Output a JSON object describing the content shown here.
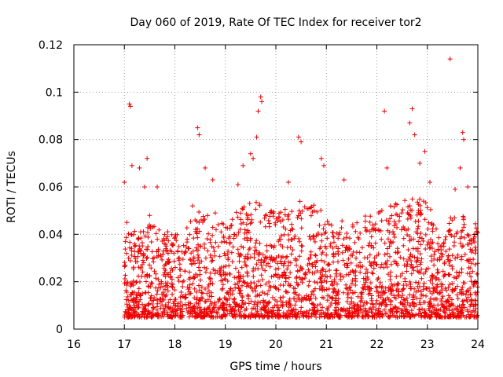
{
  "chart_data": {
    "type": "scatter",
    "title": "Day 060 of 2019, Rate Of TEC Index for receiver tor2",
    "xlabel": "GPS time / hours",
    "ylabel": "ROTI / TECUs",
    "xlim": [
      16,
      24
    ],
    "ylim": [
      0,
      0.12
    ],
    "xticks": [
      "16",
      "17",
      "18",
      "19",
      "20",
      "21",
      "22",
      "23",
      "24"
    ],
    "yticks": [
      "0",
      "0.02",
      "0.04",
      "0.06",
      "0.08",
      "0.1",
      "0.12"
    ],
    "grid": true,
    "marker": "+",
    "colors": {
      "series": "#ee0000",
      "grid": "#a0a0a0",
      "axis": "#000000"
    },
    "series": [
      {
        "name": "ROTI",
        "note": "dense cloud of ~4000 samples between 17:00 and 24:00, mostly 0.005-0.04 TECU/s; notable individual values listed below",
        "x": [
          17.0,
          17.05,
          17.1,
          17.12,
          17.15,
          17.3,
          17.4,
          17.45,
          17.5,
          17.65,
          18.35,
          18.45,
          18.48,
          18.6,
          18.75,
          18.8,
          19.25,
          19.35,
          19.5,
          19.55,
          19.62,
          19.65,
          19.7,
          19.72,
          20.25,
          20.45,
          20.5,
          20.9,
          20.95,
          21.35,
          22.15,
          22.2,
          22.65,
          22.7,
          22.75,
          22.85,
          22.95,
          23.05,
          23.45,
          23.55,
          23.65,
          23.7,
          23.72,
          23.8
        ],
        "y": [
          0.062,
          0.045,
          0.095,
          0.094,
          0.069,
          0.068,
          0.06,
          0.072,
          0.048,
          0.06,
          0.052,
          0.085,
          0.082,
          0.068,
          0.063,
          0.049,
          0.061,
          0.069,
          0.074,
          0.072,
          0.081,
          0.092,
          0.098,
          0.096,
          0.062,
          0.081,
          0.079,
          0.072,
          0.069,
          0.063,
          0.092,
          0.068,
          0.087,
          0.093,
          0.082,
          0.07,
          0.075,
          0.062,
          0.114,
          0.059,
          0.068,
          0.083,
          0.08,
          0.06
        ]
      }
    ]
  }
}
